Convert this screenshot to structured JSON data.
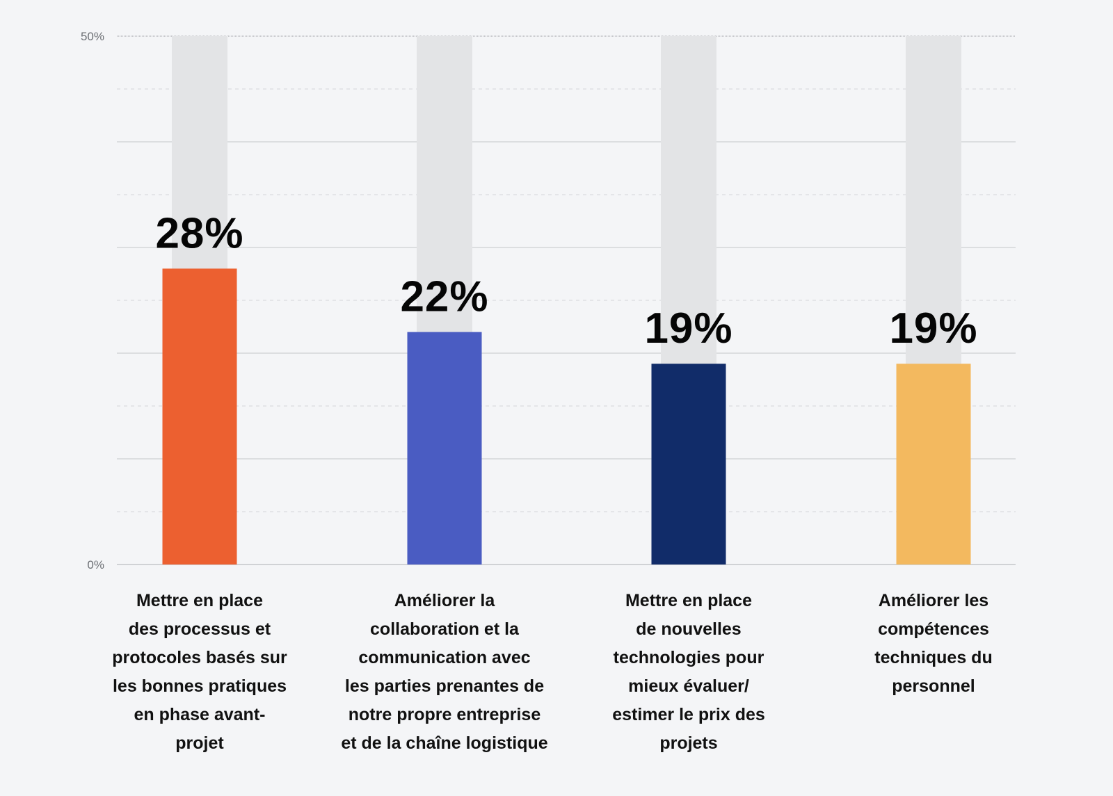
{
  "chart_data": {
    "type": "bar",
    "ylim": [
      0,
      50
    ],
    "y_tick_labels": [
      "0%",
      "50%"
    ],
    "grid": true,
    "categories": [
      [
        "Mettre en place",
        "des processus et",
        "protocoles basés sur",
        "les bonnes pratiques",
        "en phase avant-",
        "projet"
      ],
      [
        "Améliorer la",
        "collaboration et la",
        "communication avec",
        "les parties prenantes de",
        "notre propre entreprise",
        "et de la chaîne logistique"
      ],
      [
        "Mettre en place",
        "de nouvelles",
        "technologies pour",
        "mieux évaluer/",
        "estimer le prix des",
        "projets"
      ],
      [
        "Améliorer les",
        "compétences",
        "techniques du",
        "personnel"
      ]
    ],
    "values": [
      28,
      22,
      19,
      19
    ],
    "value_labels": [
      "28%",
      "22%",
      "19%",
      "19%"
    ],
    "colors": [
      "#ec6030",
      "#4a5cc2",
      "#112c69",
      "#f3b95f"
    ],
    "track_color": "#e3e4e6",
    "title": "",
    "xlabel": "",
    "ylabel": ""
  }
}
